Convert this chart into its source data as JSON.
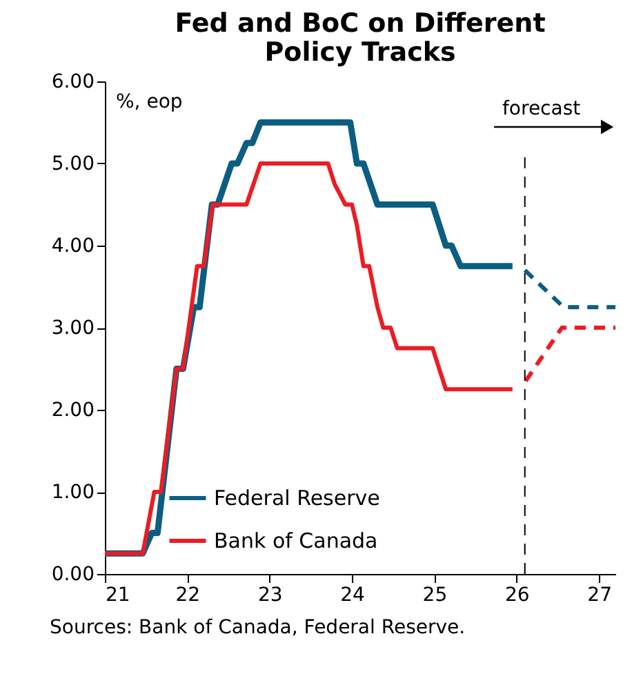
{
  "chart_data": {
    "type": "line",
    "title": "Fed and BoC on Different\nPolicy Tracks",
    "ylabel": "%, eop",
    "annotations": [
      "forecast",
      "Sources: Bank of Canada, Federal Reserve."
    ],
    "xlim": [
      21,
      27.2
    ],
    "xticks": [
      21,
      22,
      23,
      24,
      25,
      26,
      27
    ],
    "ylim": [
      0,
      6
    ],
    "yticks": [
      {
        "value": 0,
        "label": "0.00"
      },
      {
        "value": 1,
        "label": "1.00"
      },
      {
        "value": 2,
        "label": "2.00"
      },
      {
        "value": 3,
        "label": "3.00"
      },
      {
        "value": 4,
        "label": "4.00"
      },
      {
        "value": 5,
        "label": "5.00"
      },
      {
        "value": 6,
        "label": "6.00"
      }
    ],
    "grid": false,
    "legend": "bottom left",
    "ref_lines": [
      {
        "axis": "x",
        "value": 26.1,
        "line_style": "dashed",
        "color": "#000000"
      }
    ],
    "series": [
      {
        "name": "Federal Reserve",
        "color": "#0b5e82",
        "line_style": "solid",
        "x": [
          21,
          21.46,
          21.57,
          21.64,
          21.87,
          21.95,
          22.08,
          22.15,
          22.3,
          22.37,
          22.54,
          22.61,
          22.72,
          22.79,
          22.89,
          23.98,
          24.06,
          24.14,
          24.31,
          24.98,
          25.14,
          25.21,
          25.32,
          25.95
        ],
        "values": [
          0.25,
          0.25,
          0.5,
          0.5,
          2.5,
          2.5,
          3.25,
          3.25,
          4.5,
          4.5,
          5.0,
          5.0,
          5.25,
          5.25,
          5.5,
          5.5,
          5.0,
          5.0,
          4.5,
          4.5,
          4.0,
          4.0,
          3.75,
          3.75
        ]
      },
      {
        "name": "Bank of Canada",
        "color": "#ec1c24",
        "line_style": "solid",
        "x": [
          21,
          21.46,
          21.6,
          21.68,
          21.87,
          21.95,
          22.12,
          22.2,
          22.31,
          22.72,
          22.89,
          23.71,
          23.79,
          23.92,
          24.0,
          24.06,
          24.14,
          24.21,
          24.31,
          24.38,
          24.47,
          24.55,
          24.98,
          25.14,
          25.95
        ],
        "values": [
          0.25,
          0.25,
          1.0,
          1.0,
          2.5,
          2.5,
          3.75,
          3.75,
          4.5,
          4.5,
          5.0,
          5.0,
          4.75,
          4.5,
          4.5,
          4.25,
          3.75,
          3.75,
          3.25,
          3.0,
          3.0,
          2.75,
          2.75,
          2.25,
          2.25
        ]
      },
      {
        "color": "#0b5e82",
        "line_style": "dashed",
        "x": [
          26.1,
          26.57,
          27.2
        ],
        "values": [
          3.7,
          3.25,
          3.25
        ]
      },
      {
        "color": "#ec1c24",
        "line_style": "dashed",
        "x": [
          26.11,
          26.55,
          27.2
        ],
        "values": [
          2.35,
          3.0,
          3.0
        ]
      }
    ]
  }
}
